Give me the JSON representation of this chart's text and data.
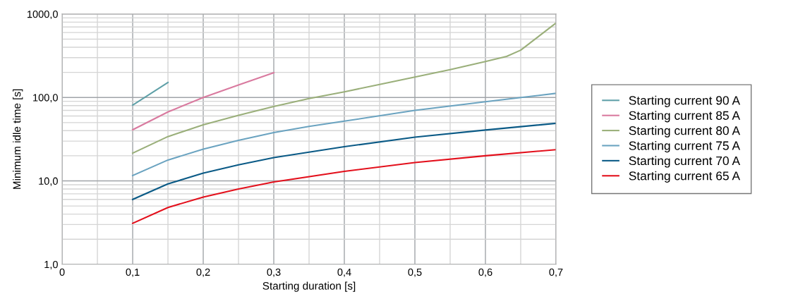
{
  "chart_data": {
    "type": "line",
    "xlabel": "Starting duration [s]",
    "ylabel": "Minimum idle time [s]",
    "xlim": [
      0,
      0.7
    ],
    "ylim": [
      1,
      1000
    ],
    "log": true,
    "grid": true,
    "legend": "right",
    "line_style": "solid",
    "marker": "none",
    "xticks": [
      {
        "value": 0,
        "label": "0"
      },
      {
        "value": 0.1,
        "label": "0,1"
      },
      {
        "value": 0.2,
        "label": "0,2"
      },
      {
        "value": 0.3,
        "label": "0,3"
      },
      {
        "value": 0.4,
        "label": "0,4"
      },
      {
        "value": 0.5,
        "label": "0,5"
      },
      {
        "value": 0.6,
        "label": "0,6"
      },
      {
        "value": 0.7,
        "label": "0,7"
      }
    ],
    "yticks": [
      {
        "value": 1,
        "label": "1,0"
      },
      {
        "value": 10,
        "label": "10,0"
      },
      {
        "value": 100,
        "label": "100,0"
      },
      {
        "value": 1000,
        "label": "1000,0"
      }
    ],
    "series": [
      {
        "name": "Starting current 90 A",
        "color": "#5fa0a8",
        "x": [
          0.1,
          0.15
        ],
        "values": [
          81,
          151
        ]
      },
      {
        "name": "Starting current 85 A",
        "color": "#d97a9f",
        "x": [
          0.1,
          0.15,
          0.2,
          0.25,
          0.3
        ],
        "values": [
          41,
          67,
          100,
          141,
          198
        ]
      },
      {
        "name": "Starting current 80 A",
        "color": "#9aaf7a",
        "x": [
          0.1,
          0.15,
          0.2,
          0.25,
          0.3,
          0.35,
          0.4,
          0.45,
          0.5,
          0.55,
          0.6,
          0.63,
          0.65,
          0.7
        ],
        "values": [
          21.5,
          34,
          47,
          61,
          78,
          97,
          117,
          143,
          176,
          216,
          270,
          311,
          369,
          780
        ]
      },
      {
        "name": "Starting current 75 A",
        "color": "#6aa3c0",
        "x": [
          0.1,
          0.15,
          0.2,
          0.25,
          0.3,
          0.35,
          0.4,
          0.5,
          0.6,
          0.7
        ],
        "values": [
          11.6,
          17.8,
          24,
          30.7,
          38,
          45,
          52,
          70,
          89,
          112
        ]
      },
      {
        "name": "Starting current 70 A",
        "color": "#0a5a86",
        "x": [
          0.1,
          0.15,
          0.2,
          0.25,
          0.3,
          0.4,
          0.5,
          0.6,
          0.7
        ],
        "values": [
          6.0,
          9.2,
          12.4,
          15.6,
          19,
          25.7,
          33.4,
          40.7,
          49
        ]
      },
      {
        "name": "Starting current 65 A",
        "color": "#e3101c",
        "x": [
          0.1,
          0.15,
          0.2,
          0.25,
          0.3,
          0.4,
          0.5,
          0.6,
          0.7
        ],
        "values": [
          3.1,
          4.8,
          6.4,
          8.0,
          9.7,
          13,
          16.6,
          20,
          23.7
        ]
      }
    ]
  }
}
